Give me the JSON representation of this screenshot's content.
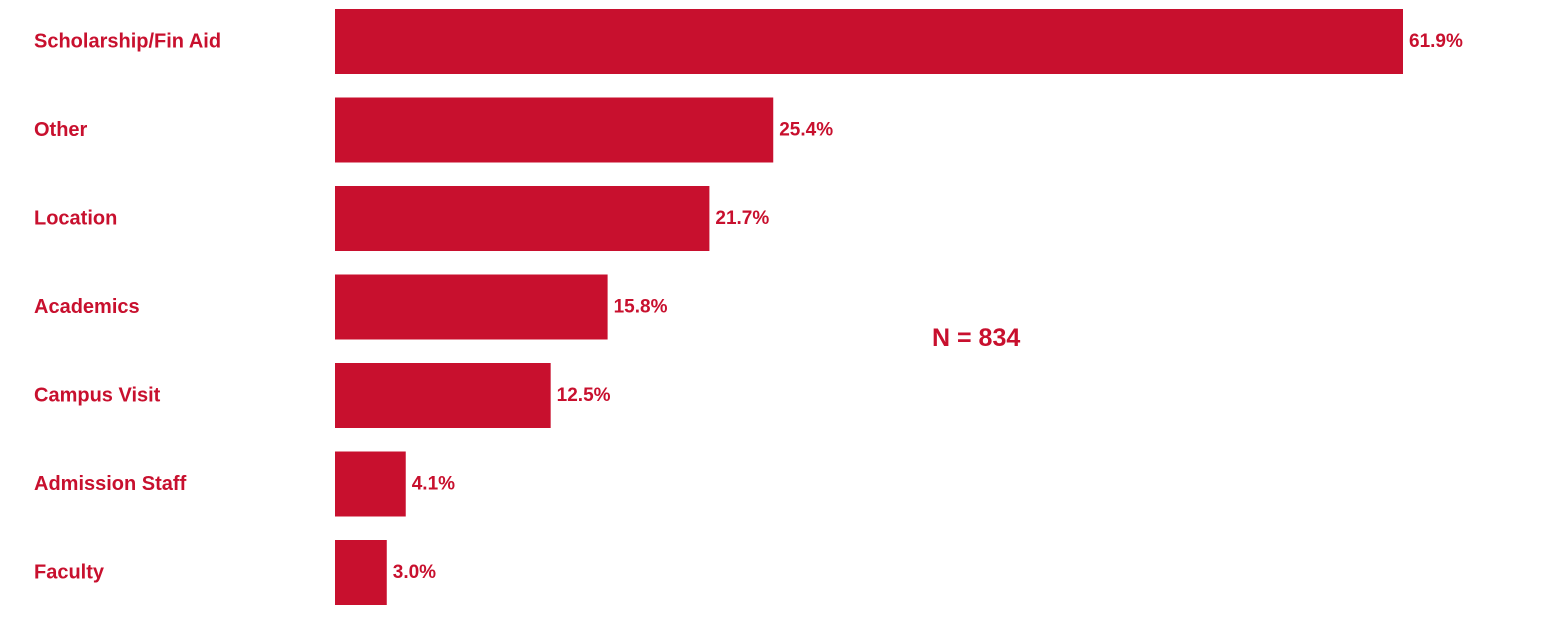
{
  "colors": {
    "bar": "#C8102E",
    "text": "#C8102E"
  },
  "annotation": "N = 834",
  "chart_data": {
    "type": "bar",
    "orientation": "horizontal",
    "categories": [
      "Scholarship/Fin Aid",
      "Other",
      "Location",
      "Academics",
      "Campus Visit",
      "Admission Staff",
      "Faculty"
    ],
    "values": [
      61.9,
      25.4,
      21.7,
      15.8,
      12.5,
      4.1,
      3.0
    ],
    "value_labels": [
      "61.9%",
      "25.4%",
      "21.7%",
      "15.8%",
      "12.5%",
      "4.1%",
      "3.0%"
    ],
    "title": "",
    "xlabel": "",
    "ylabel": "",
    "xlim": [
      0,
      61.9
    ],
    "grid": false,
    "legend": "none"
  }
}
